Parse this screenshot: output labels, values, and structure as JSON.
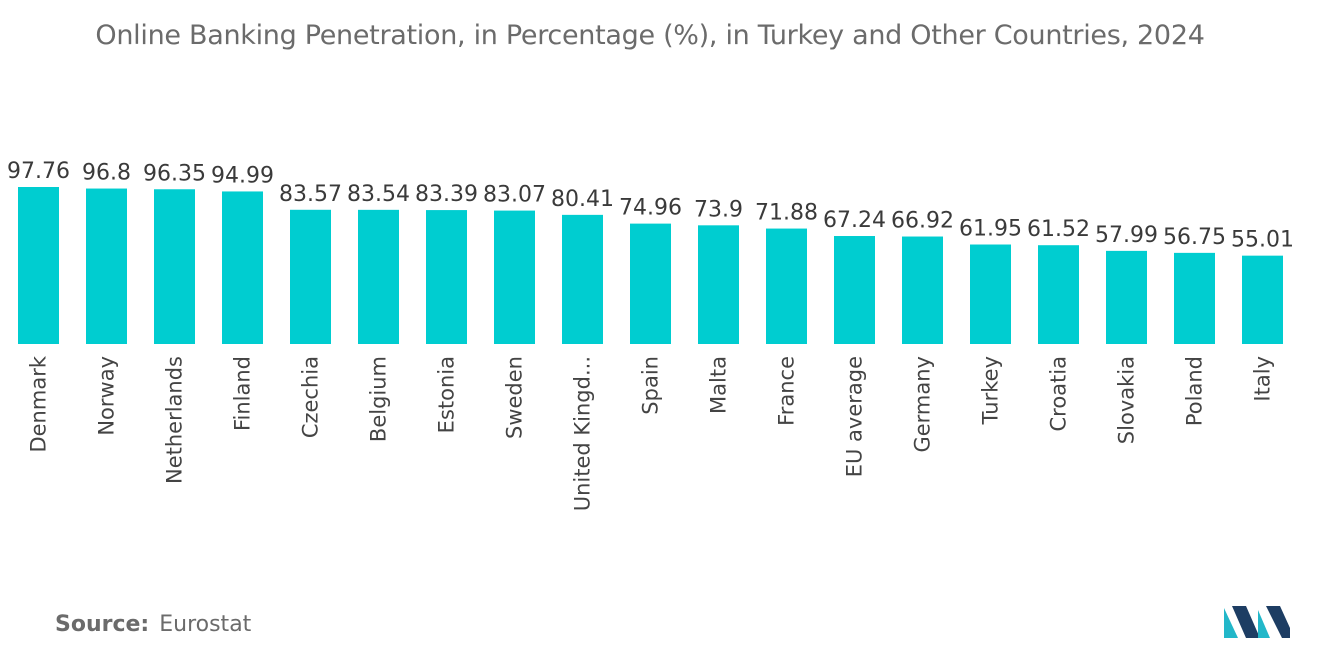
{
  "title": "Online Banking Penetration, in Percentage (%), in Turkey and Other Countries, 2024",
  "source_label": "Source:",
  "source_value": "Eurostat",
  "colors": {
    "bar": "#00cdd0",
    "logo_dark": "#1d3d63",
    "logo_light": "#22b7c9"
  },
  "chart_data": {
    "type": "bar",
    "title": "Online Banking Penetration, in Percentage (%), in Turkey and Other Countries, 2024",
    "categories": [
      "Denmark",
      "Norway",
      "Netherlands",
      "Finland",
      "Czechia",
      "Belgium",
      "Estonia",
      "Sweden",
      "United Kingd...",
      "Spain",
      "Malta",
      "France",
      "EU average",
      "Germany",
      "Turkey",
      "Croatia",
      "Slovakia",
      "Poland",
      "Italy"
    ],
    "values": [
      97.76,
      96.8,
      96.35,
      94.99,
      83.57,
      83.54,
      83.39,
      83.07,
      80.41,
      74.96,
      73.9,
      71.88,
      67.24,
      66.92,
      61.95,
      61.52,
      57.99,
      56.75,
      55.01
    ],
    "value_labels": [
      "97.76",
      "96.8",
      "96.35",
      "94.99",
      "83.57",
      "83.54",
      "83.39",
      "83.07",
      "80.41",
      "74.96",
      "73.9",
      "71.88",
      "67.24",
      "66.92",
      "61.95",
      "61.52",
      "57.99",
      "56.75",
      "55.01"
    ],
    "ylim": [
      0,
      100
    ],
    "grid": false,
    "legend": "none"
  }
}
